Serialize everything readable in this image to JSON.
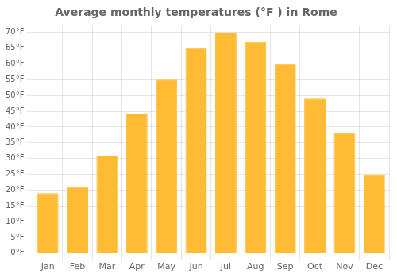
{
  "chart_data": {
    "type": "bar",
    "title": "Average monthly temperatures (°F ) in Rome",
    "categories": [
      "Jan",
      "Feb",
      "Mar",
      "Apr",
      "May",
      "Jun",
      "Jul",
      "Aug",
      "Sep",
      "Oct",
      "Nov",
      "Dec"
    ],
    "values": [
      19,
      21,
      31,
      44,
      55,
      65,
      70,
      67,
      60,
      49,
      38,
      25
    ],
    "color": "#FFBB33",
    "ylim": [
      0,
      72
    ],
    "yticks": [
      {
        "value": 0,
        "label": "0°F"
      },
      {
        "value": 5,
        "label": "5°F"
      },
      {
        "value": 10,
        "label": "10°F"
      },
      {
        "value": 15,
        "label": "15°F"
      },
      {
        "value": 20,
        "label": "20°F"
      },
      {
        "value": 25,
        "label": "25°F"
      },
      {
        "value": 30,
        "label": "30°F"
      },
      {
        "value": 35,
        "label": "35°F"
      },
      {
        "value": 40,
        "label": "40°F"
      },
      {
        "value": 45,
        "label": "45°F"
      },
      {
        "value": 50,
        "label": "50°F"
      },
      {
        "value": 55,
        "label": "55°F"
      },
      {
        "value": 60,
        "label": "60°F"
      },
      {
        "value": 65,
        "label": "65°F"
      },
      {
        "value": 70,
        "label": "70°F"
      }
    ],
    "grid": true
  }
}
